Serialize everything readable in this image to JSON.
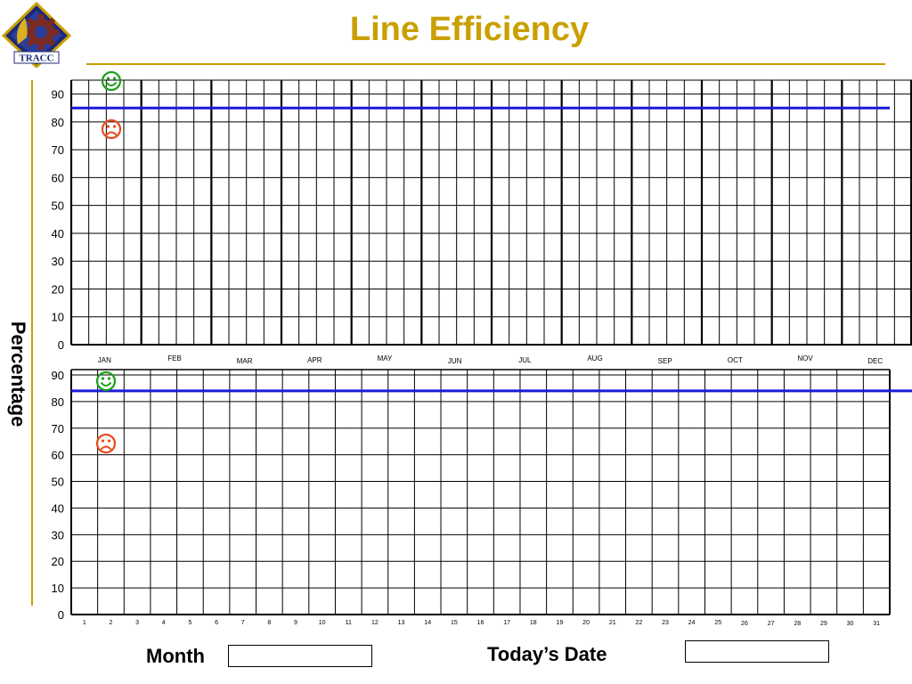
{
  "title": "Line Efficiency",
  "y_axis_label": "Percentage",
  "logo": {
    "text": "TRACC",
    "icon": "tracc-logo-icon"
  },
  "colors": {
    "title": "#c9a000",
    "rule": "#c9a000",
    "target_line": "#1a1adb",
    "happy": "#1aa01a",
    "sad": "#e84a1c",
    "grid": "#000000"
  },
  "fields": {
    "month_label": "Month",
    "month_value": "",
    "date_label": "Today’s Date",
    "date_value": ""
  },
  "chart_data": [
    {
      "type": "line",
      "name": "monthly",
      "categories": [
        "JAN",
        "FEB",
        "MAR",
        "APR",
        "MAY",
        "JUN",
        "JUL",
        "AUG",
        "SEP",
        "OCT",
        "NOV",
        "DEC"
      ],
      "weeks_per_month": 4,
      "y_ticks": [
        0,
        10,
        20,
        30,
        40,
        50,
        60,
        70,
        80,
        90
      ],
      "ylim": [
        0,
        95
      ],
      "target": 85,
      "icons": {
        "happy": "happy-face-icon",
        "sad": "sad-face-icon"
      },
      "series": []
    },
    {
      "type": "line",
      "name": "daily",
      "categories": [
        "1",
        "2",
        "3",
        "4",
        "5",
        "6",
        "7",
        "8",
        "9",
        "10",
        "11",
        "12",
        "13",
        "14",
        "15",
        "16",
        "17",
        "18",
        "19",
        "20",
        "21",
        "22",
        "23",
        "24",
        "25",
        "26",
        "27",
        "28",
        "29",
        "30",
        "31"
      ],
      "y_ticks": [
        0,
        10,
        20,
        30,
        40,
        50,
        60,
        70,
        80,
        90
      ],
      "ylim": [
        0,
        92
      ],
      "target": 84,
      "icons": {
        "happy": "happy-face-icon",
        "sad": "sad-face-icon"
      },
      "series": []
    }
  ]
}
